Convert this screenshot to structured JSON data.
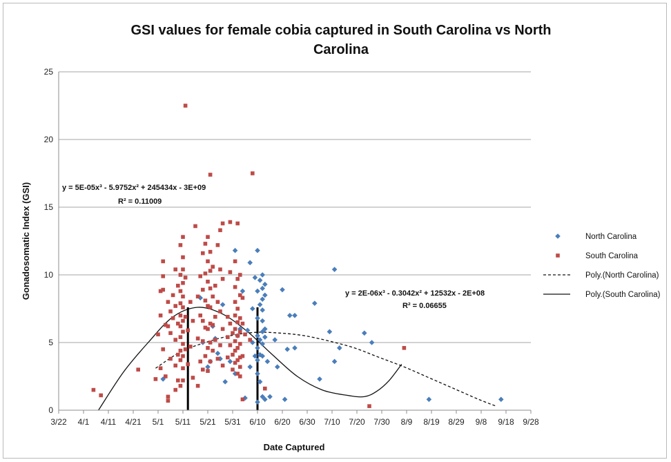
{
  "chart_data": {
    "type": "scatter",
    "title_line1": "GSI values for female cobia captured in South Carolina vs North",
    "title_line2": "Carolina",
    "xlabel": "Date Captured",
    "ylabel": "Gonadosomatic Index (GSI)",
    "x_tick_labels": [
      "3/22",
      "4/1",
      "4/11",
      "4/21",
      "5/1",
      "5/11",
      "5/21",
      "5/31",
      "6/10",
      "6/20",
      "6/30",
      "7/10",
      "7/20",
      "7/30",
      "8/9",
      "8/19",
      "8/29",
      "9/8",
      "9/18",
      "9/28"
    ],
    "y_tick_labels": [
      "0",
      "5",
      "10",
      "15",
      "20",
      "25"
    ],
    "xlim": [
      "3/22",
      "9/28"
    ],
    "ylim": [
      0,
      25
    ],
    "y_ticks": [
      0,
      5,
      10,
      15,
      20,
      25
    ],
    "grid": true,
    "legend_position": "right",
    "legend": [
      {
        "label": "North Carolina",
        "kind": "marker",
        "marker": "diamond",
        "color": "#4a7ebb"
      },
      {
        "label": "South Carolina",
        "kind": "marker",
        "marker": "square",
        "color": "#be4b48"
      },
      {
        "label": "Poly.(North Carolina)",
        "kind": "line",
        "dash": "dashed",
        "color": "#111111"
      },
      {
        "label": "Poly.(South Carolina)",
        "kind": "line",
        "dash": "solid",
        "color": "#111111"
      }
    ],
    "annotations": {
      "sc_equation": "y = 5E-05x³ - 5.9752x² + 245434x - 3E+09",
      "sc_r2": "R² = 0.11009",
      "nc_equation": "y = 2E-06x³ - 0.3042x² + 12532x - 2E+08",
      "nc_r2": "R² = 0.06655"
    },
    "vertical_markers": [
      "5/13",
      "6/10"
    ],
    "series": [
      {
        "name": "North Carolina",
        "marker": "diamond",
        "color": "#4a7ebb",
        "points": [
          [
            "5/3",
            2.3
          ],
          [
            "5/18",
            8.3
          ],
          [
            "5/19",
            5.0
          ],
          [
            "5/21",
            3.2
          ],
          [
            "5/22",
            3.6
          ],
          [
            "5/23",
            6.2
          ],
          [
            "5/24",
            5.3
          ],
          [
            "5/25",
            4.2
          ],
          [
            "5/26",
            3.8
          ],
          [
            "5/27",
            7.8
          ],
          [
            "5/28",
            2.1
          ],
          [
            "5/30",
            3.6
          ],
          [
            "6/1",
            2.7
          ],
          [
            "6/1",
            11.8
          ],
          [
            "6/2",
            5.5
          ],
          [
            "6/3",
            6.0
          ],
          [
            "6/4",
            8.8
          ],
          [
            "6/5",
            0.9
          ],
          [
            "6/6",
            5.9
          ],
          [
            "6/7",
            3.2
          ],
          [
            "6/7",
            10.9
          ],
          [
            "6/8",
            7.5
          ],
          [
            "6/8",
            5.0
          ],
          [
            "6/9",
            9.8
          ],
          [
            "6/9",
            4.0
          ],
          [
            "6/10",
            11.8
          ],
          [
            "6/10",
            8.8
          ],
          [
            "6/10",
            6.8
          ],
          [
            "6/10",
            5.5
          ],
          [
            "6/10",
            4.6
          ],
          [
            "6/10",
            3.7
          ],
          [
            "6/10",
            2.7
          ],
          [
            "6/10",
            0.6
          ],
          [
            "6/11",
            9.6
          ],
          [
            "6/11",
            7.8
          ],
          [
            "6/11",
            5.2
          ],
          [
            "6/11",
            4.1
          ],
          [
            "6/11",
            2.1
          ],
          [
            "6/12",
            10.0
          ],
          [
            "6/12",
            9.0
          ],
          [
            "6/12",
            8.2
          ],
          [
            "6/12",
            7.4
          ],
          [
            "6/12",
            6.6
          ],
          [
            "6/12",
            5.8
          ],
          [
            "6/12",
            4.9
          ],
          [
            "6/12",
            4.0
          ],
          [
            "6/12",
            1.0
          ],
          [
            "6/13",
            9.3
          ],
          [
            "6/13",
            8.5
          ],
          [
            "6/13",
            6.0
          ],
          [
            "6/13",
            5.4
          ],
          [
            "6/13",
            0.8
          ],
          [
            "6/14",
            3.6
          ],
          [
            "6/15",
            1.0
          ],
          [
            "6/17",
            5.2
          ],
          [
            "6/18",
            3.2
          ],
          [
            "6/20",
            8.9
          ],
          [
            "6/21",
            0.8
          ],
          [
            "6/22",
            4.5
          ],
          [
            "6/23",
            7.0
          ],
          [
            "6/25",
            7.0
          ],
          [
            "6/25",
            4.6
          ],
          [
            "7/3",
            7.9
          ],
          [
            "7/5",
            2.3
          ],
          [
            "7/9",
            5.8
          ],
          [
            "7/11",
            3.6
          ],
          [
            "7/11",
            10.4
          ],
          [
            "7/13",
            4.6
          ],
          [
            "7/23",
            5.7
          ],
          [
            "7/26",
            5.0
          ],
          [
            "8/18",
            0.8
          ],
          [
            "9/16",
            0.8
          ]
        ]
      },
      {
        "name": "South Carolina",
        "marker": "square",
        "color": "#be4b48",
        "points": [
          [
            "4/5",
            1.5
          ],
          [
            "4/8",
            1.1
          ],
          [
            "4/23",
            3.0
          ],
          [
            "4/30",
            2.3
          ],
          [
            "5/1",
            5.6
          ],
          [
            "5/2",
            8.8
          ],
          [
            "5/2",
            7.0
          ],
          [
            "5/2",
            3.1
          ],
          [
            "5/3",
            11.0
          ],
          [
            "5/3",
            9.9
          ],
          [
            "5/3",
            8.9
          ],
          [
            "5/3",
            4.5
          ],
          [
            "5/4",
            6.3
          ],
          [
            "5/4",
            2.5
          ],
          [
            "5/5",
            8.0
          ],
          [
            "5/5",
            6.2
          ],
          [
            "5/5",
            1.0
          ],
          [
            "5/5",
            0.7
          ],
          [
            "5/6",
            7.3
          ],
          [
            "5/6",
            5.7
          ],
          [
            "5/6",
            3.8
          ],
          [
            "5/7",
            8.5
          ],
          [
            "5/7",
            6.8
          ],
          [
            "5/8",
            10.4
          ],
          [
            "5/8",
            7.7
          ],
          [
            "5/8",
            5.2
          ],
          [
            "5/8",
            3.3
          ],
          [
            "5/8",
            1.5
          ],
          [
            "5/9",
            9.2
          ],
          [
            "5/9",
            6.4
          ],
          [
            "5/9",
            4.1
          ],
          [
            "5/9",
            2.2
          ],
          [
            "5/10",
            12.2
          ],
          [
            "5/10",
            10.0
          ],
          [
            "5/10",
            8.8
          ],
          [
            "5/10",
            7.9
          ],
          [
            "5/10",
            7.0
          ],
          [
            "5/10",
            6.2
          ],
          [
            "5/10",
            5.4
          ],
          [
            "5/10",
            4.4
          ],
          [
            "5/10",
            3.7
          ],
          [
            "5/10",
            1.8
          ],
          [
            "5/11",
            12.8
          ],
          [
            "5/11",
            11.3
          ],
          [
            "5/11",
            10.4
          ],
          [
            "5/11",
            9.4
          ],
          [
            "5/11",
            8.4
          ],
          [
            "5/11",
            7.6
          ],
          [
            "5/11",
            6.6
          ],
          [
            "5/11",
            5.8
          ],
          [
            "5/11",
            4.9
          ],
          [
            "5/11",
            4.0
          ],
          [
            "5/11",
            3.1
          ],
          [
            "5/11",
            2.2
          ],
          [
            "5/12",
            22.5
          ],
          [
            "5/12",
            9.8
          ],
          [
            "5/12",
            6.9
          ],
          [
            "5/12",
            4.5
          ],
          [
            "5/13",
            5.9
          ],
          [
            "5/13",
            3.4
          ],
          [
            "5/14",
            8.0
          ],
          [
            "5/14",
            4.7
          ],
          [
            "5/15",
            6.6
          ],
          [
            "5/15",
            2.4
          ],
          [
            "5/16",
            13.6
          ],
          [
            "5/17",
            8.4
          ],
          [
            "5/17",
            5.3
          ],
          [
            "5/17",
            1.8
          ],
          [
            "5/18",
            9.9
          ],
          [
            "5/18",
            7.0
          ],
          [
            "5/18",
            3.6
          ],
          [
            "5/19",
            11.6
          ],
          [
            "5/19",
            8.9
          ],
          [
            "5/19",
            6.6
          ],
          [
            "5/19",
            5.1
          ],
          [
            "5/19",
            3.0
          ],
          [
            "5/20",
            12.3
          ],
          [
            "5/20",
            10.1
          ],
          [
            "5/20",
            8.1
          ],
          [
            "5/20",
            6.1
          ],
          [
            "5/20",
            4.0
          ],
          [
            "5/21",
            12.8
          ],
          [
            "5/21",
            11.0
          ],
          [
            "5/21",
            9.5
          ],
          [
            "5/21",
            7.7
          ],
          [
            "5/21",
            6.0
          ],
          [
            "5/21",
            4.6
          ],
          [
            "5/21",
            2.9
          ],
          [
            "5/22",
            17.4
          ],
          [
            "5/22",
            11.7
          ],
          [
            "5/22",
            10.3
          ],
          [
            "5/22",
            9.0
          ],
          [
            "5/22",
            7.6
          ],
          [
            "5/22",
            6.4
          ],
          [
            "5/22",
            5.0
          ],
          [
            "5/22",
            3.6
          ],
          [
            "5/23",
            10.6
          ],
          [
            "5/23",
            8.4
          ],
          [
            "5/23",
            6.3
          ],
          [
            "5/23",
            4.4
          ],
          [
            "5/24",
            9.2
          ],
          [
            "5/24",
            6.9
          ],
          [
            "5/24",
            5.2
          ],
          [
            "5/25",
            12.2
          ],
          [
            "5/25",
            8.0
          ],
          [
            "5/25",
            3.8
          ],
          [
            "5/26",
            13.3
          ],
          [
            "5/26",
            10.4
          ],
          [
            "5/26",
            7.3
          ],
          [
            "5/26",
            4.8
          ],
          [
            "5/27",
            13.8
          ],
          [
            "5/27",
            9.7
          ],
          [
            "5/27",
            6.0
          ],
          [
            "5/27",
            3.3
          ],
          [
            "5/29",
            6.9
          ],
          [
            "5/29",
            5.4
          ],
          [
            "5/29",
            3.9
          ],
          [
            "5/30",
            13.9
          ],
          [
            "5/30",
            10.2
          ],
          [
            "5/30",
            6.4
          ],
          [
            "5/30",
            4.8
          ],
          [
            "5/31",
            5.7
          ],
          [
            "5/31",
            4.1
          ],
          [
            "5/31",
            3.0
          ],
          [
            "6/1",
            11.0
          ],
          [
            "6/1",
            9.1
          ],
          [
            "6/1",
            8.0
          ],
          [
            "6/1",
            7.0
          ],
          [
            "6/1",
            6.0
          ],
          [
            "6/1",
            5.1
          ],
          [
            "6/1",
            4.4
          ],
          [
            "6/1",
            3.5
          ],
          [
            "6/2",
            13.8
          ],
          [
            "6/2",
            9.7
          ],
          [
            "6/2",
            7.5
          ],
          [
            "6/2",
            6.5
          ],
          [
            "6/2",
            5.5
          ],
          [
            "6/2",
            4.6
          ],
          [
            "6/2",
            3.7
          ],
          [
            "6/2",
            2.7
          ],
          [
            "6/3",
            10.0
          ],
          [
            "6/3",
            8.5
          ],
          [
            "6/3",
            6.8
          ],
          [
            "6/3",
            5.8
          ],
          [
            "6/3",
            4.9
          ],
          [
            "6/3",
            3.9
          ],
          [
            "6/3",
            3.2
          ],
          [
            "6/3",
            2.5
          ],
          [
            "6/4",
            8.3
          ],
          [
            "6/4",
            6.4
          ],
          [
            "6/4",
            4.0
          ],
          [
            "6/4",
            0.8
          ],
          [
            "6/5",
            5.6
          ],
          [
            "6/7",
            5.2
          ],
          [
            "6/8",
            17.5
          ],
          [
            "6/13",
            1.6
          ],
          [
            "7/25",
            0.3
          ],
          [
            "8/8",
            4.6
          ]
        ]
      }
    ],
    "trendlines": [
      {
        "name": "Poly.(South Carolina)",
        "dash": "solid",
        "points": [
          [
            "4/7",
            0
          ],
          [
            "4/17",
            2.8
          ],
          [
            "4/27",
            5.0
          ],
          [
            "5/7",
            6.9
          ],
          [
            "5/17",
            7.6
          ],
          [
            "5/27",
            7.1
          ],
          [
            "6/6",
            5.8
          ],
          [
            "6/16",
            4.1
          ],
          [
            "6/26",
            2.5
          ],
          [
            "7/6",
            1.5
          ],
          [
            "7/16",
            1.1
          ],
          [
            "7/23",
            1.0
          ],
          [
            "7/28",
            1.4
          ],
          [
            "8/2",
            2.2
          ],
          [
            "8/7",
            3.4
          ]
        ]
      },
      {
        "name": "Poly.(North Carolina)",
        "dash": "dashed",
        "points": [
          [
            "4/30",
            3.1
          ],
          [
            "5/10",
            4.3
          ],
          [
            "5/20",
            5.0
          ],
          [
            "5/30",
            5.5
          ],
          [
            "6/9",
            5.75
          ],
          [
            "6/19",
            5.7
          ],
          [
            "6/29",
            5.5
          ],
          [
            "7/9",
            5.1
          ],
          [
            "7/19",
            4.6
          ],
          [
            "7/29",
            3.9
          ],
          [
            "8/8",
            3.2
          ],
          [
            "8/18",
            2.4
          ],
          [
            "8/28",
            1.6
          ],
          [
            "9/7",
            0.8
          ],
          [
            "9/14",
            0.3
          ]
        ]
      }
    ]
  }
}
